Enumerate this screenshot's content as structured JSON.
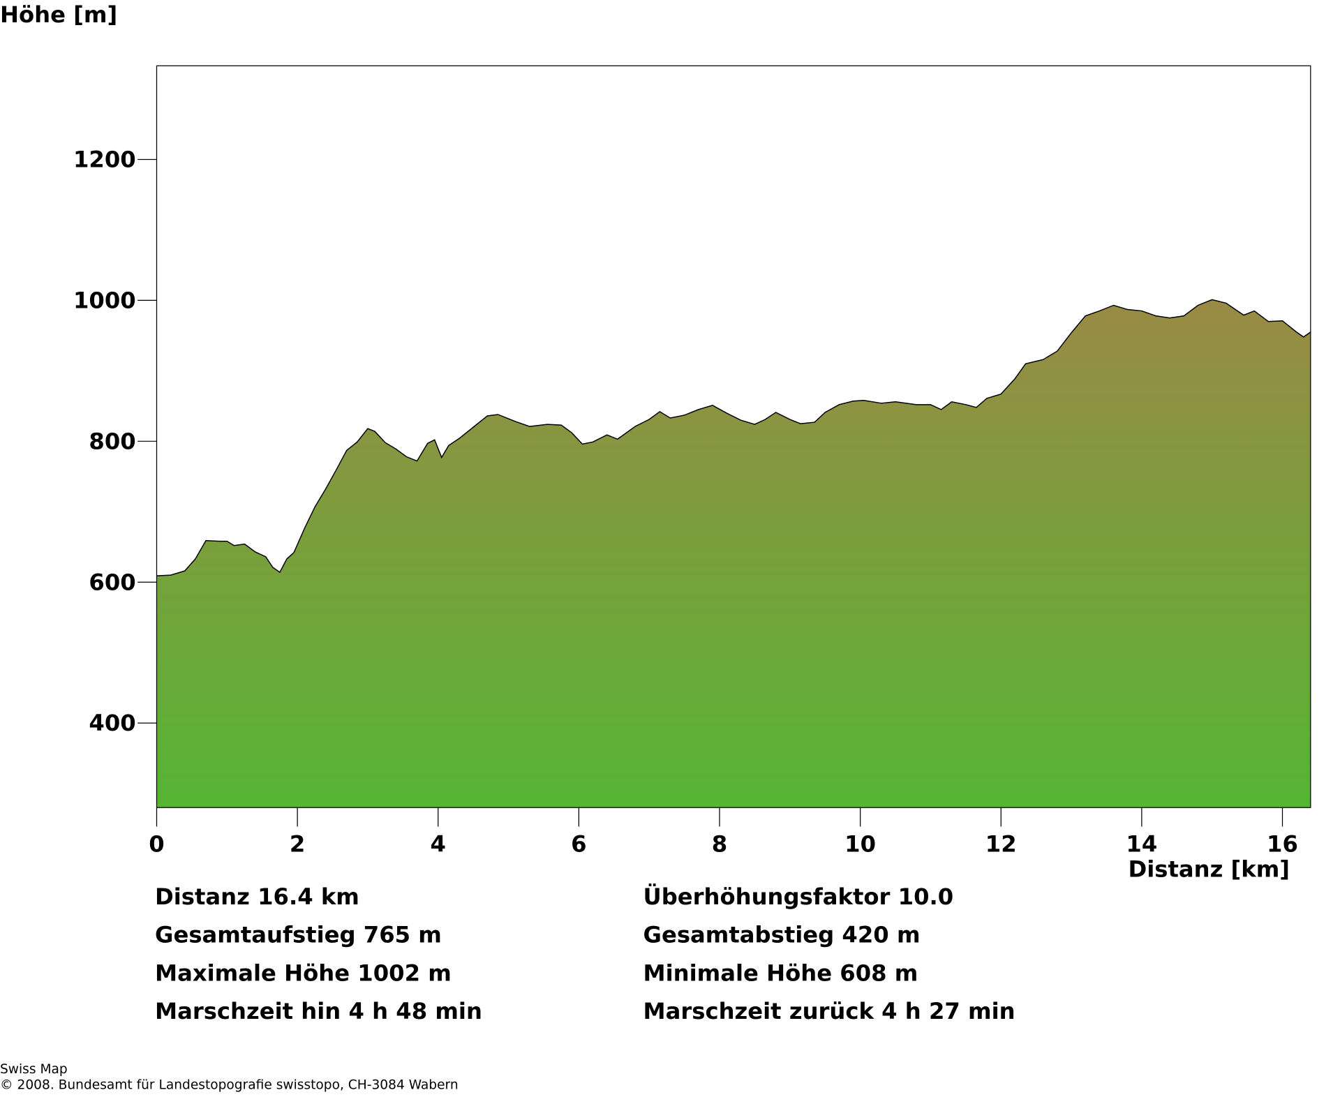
{
  "chart_data": {
    "type": "area",
    "y_label": "Höhe [m]",
    "x_label": "Distanz [km]",
    "x": [
      0,
      0.2,
      0.4,
      0.55,
      0.7,
      0.9,
      1.0,
      1.1,
      1.25,
      1.4,
      1.55,
      1.65,
      1.75,
      1.85,
      1.95,
      2.1,
      2.25,
      2.4,
      2.55,
      2.7,
      2.85,
      3.0,
      3.1,
      3.25,
      3.4,
      3.55,
      3.7,
      3.85,
      3.95,
      4.05,
      4.15,
      4.3,
      4.5,
      4.7,
      4.85,
      5.1,
      5.3,
      5.55,
      5.75,
      5.9,
      6.05,
      6.2,
      6.4,
      6.55,
      6.8,
      7.0,
      7.15,
      7.3,
      7.5,
      7.7,
      7.9,
      8.1,
      8.3,
      8.5,
      8.65,
      8.8,
      9.0,
      9.15,
      9.35,
      9.5,
      9.7,
      9.9,
      10.05,
      10.3,
      10.5,
      10.8,
      11.0,
      11.15,
      11.3,
      11.5,
      11.65,
      11.8,
      12.0,
      12.2,
      12.35,
      12.6,
      12.8,
      13.0,
      13.2,
      13.4,
      13.6,
      13.8,
      14.0,
      14.2,
      14.4,
      14.6,
      14.8,
      15.0,
      15.2,
      15.45,
      15.6,
      15.8,
      16.0,
      16.2,
      16.3,
      16.4
    ],
    "values": [
      609,
      610,
      616,
      633,
      659,
      658,
      658,
      652,
      654,
      643,
      636,
      621,
      614,
      633,
      642,
      676,
      707,
      732,
      759,
      787,
      799,
      818,
      814,
      798,
      789,
      778,
      772,
      797,
      802,
      777,
      794,
      804,
      820,
      836,
      838,
      828,
      821,
      824,
      823,
      812,
      796,
      799,
      809,
      803,
      821,
      831,
      842,
      833,
      837,
      845,
      851,
      840,
      830,
      824,
      831,
      841,
      831,
      825,
      827,
      841,
      852,
      857,
      858,
      854,
      856,
      852,
      852,
      845,
      856,
      852,
      848,
      861,
      867,
      889,
      910,
      916,
      928,
      954,
      978,
      985,
      993,
      987,
      985,
      978,
      975,
      978,
      993,
      1001,
      996,
      979,
      985,
      970,
      971,
      955,
      948,
      955
    ],
    "xlim": [
      0,
      16.4
    ],
    "ylim": [
      280,
      1333
    ],
    "xticks": [
      0,
      2,
      4,
      6,
      8,
      10,
      12,
      14,
      16
    ],
    "yticks": [
      400,
      600,
      800,
      1000,
      1200
    ],
    "gradient": [
      "#9a8a45",
      "#56b533"
    ],
    "line_color": "#000000"
  },
  "stats": {
    "left": [
      "Distanz 16.4 km",
      "Gesamtaufstieg  765 m",
      "Maximale Höhe  1002 m",
      "Marschzeit hin  4 h 48 min"
    ],
    "right": [
      "Überhöhungsfaktor 10.0",
      "Gesamtabstieg  420 m",
      "Minimale Höhe  608 m",
      "Marschzeit zurück  4 h 27 min"
    ]
  },
  "footer": [
    "Swiss Map",
    "© 2008. Bundesamt für Landestopografie swisstopo, CH-3084 Wabern"
  ]
}
